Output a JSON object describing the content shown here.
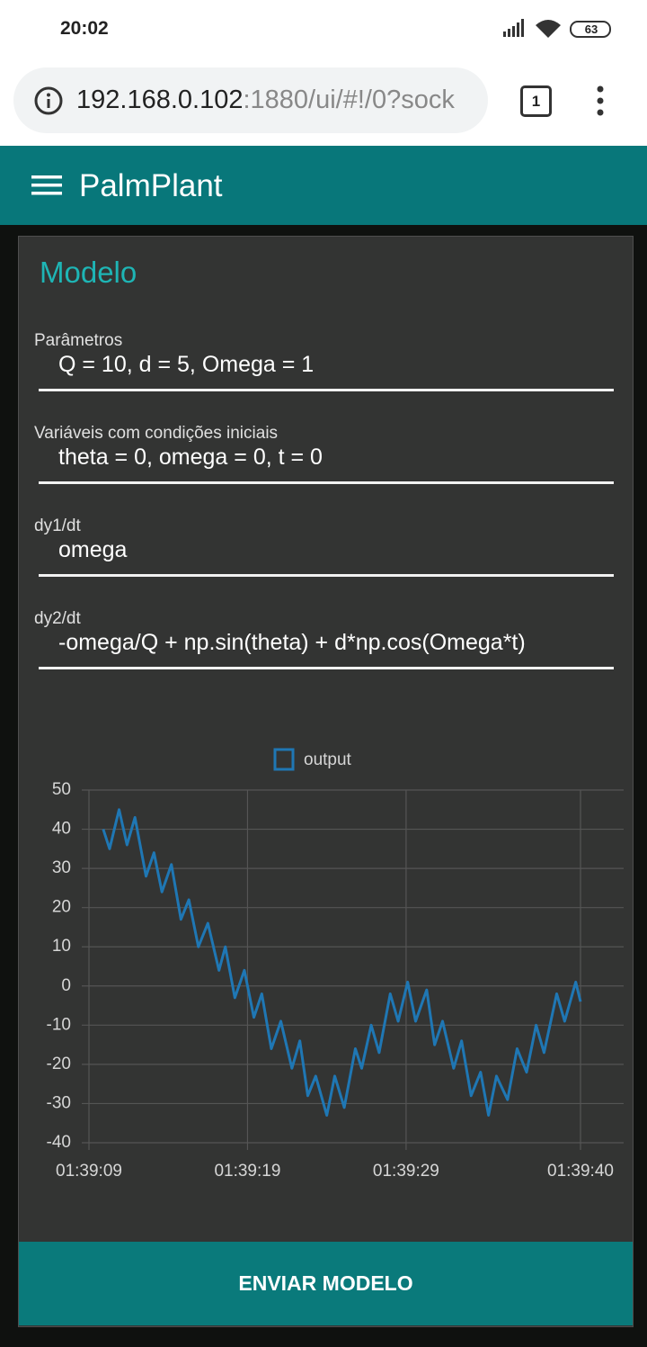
{
  "status_bar": {
    "time": "20:02",
    "battery": "63"
  },
  "browser": {
    "url_host": "192.168.0.102",
    "url_rest": ":1880/ui/#!/0?sock",
    "tab_count": "1"
  },
  "app": {
    "title": "PalmPlant"
  },
  "card": {
    "title": "Modelo",
    "fields": [
      {
        "label": "Parâmetros",
        "value": "Q = 10, d = 5, Omega = 1"
      },
      {
        "label": "Variáveis com condições iniciais",
        "value": "theta = 0, omega = 0, t = 0"
      },
      {
        "label": "dy1/dt",
        "value": "omega"
      },
      {
        "label": "dy2/dt",
        "value": "-omega/Q + np.sin(theta) + d*np.cos(Omega*t)"
      }
    ]
  },
  "chart_data": {
    "type": "line",
    "x": [
      9.9,
      10.3,
      10.9,
      11.4,
      11.9,
      12.6,
      13.1,
      13.6,
      14.2,
      14.8,
      15.3,
      15.9,
      16.5,
      17.2,
      17.6,
      18.2,
      18.8,
      19.4,
      19.9,
      20.5,
      21.1,
      21.8,
      22.3,
      22.8,
      23.3,
      24.0,
      24.5,
      25.1,
      25.8,
      26.2,
      26.8,
      27.3,
      28.0,
      28.5,
      29.1,
      29.6,
      30.3,
      30.8,
      31.3,
      32.0,
      32.5,
      33.1,
      33.7,
      34.2,
      34.7,
      35.4,
      36.0,
      36.6,
      37.2,
      37.7,
      38.5,
      39.0,
      39.7,
      40.0
    ],
    "series": [
      {
        "name": "output",
        "color": "#1f77b4",
        "values": [
          40,
          35,
          45,
          36,
          43,
          28,
          34,
          24,
          31,
          17,
          22,
          10,
          16,
          4,
          10,
          -3,
          4,
          -8,
          -2,
          -16,
          -9,
          -21,
          -14,
          -28,
          -23,
          -33,
          -23,
          -31,
          -16,
          -21,
          -10,
          -17,
          -2,
          -9,
          1,
          -9,
          -1,
          -15,
          -9,
          -21,
          -14,
          -28,
          -22,
          -33,
          -23,
          -29,
          -16,
          -22,
          -10,
          -17,
          -2,
          -9,
          1,
          -4
        ]
      }
    ],
    "xlim": [
      9,
      40
    ],
    "xticks": [
      {
        "value": 9,
        "label": "01:39:09"
      },
      {
        "value": 19,
        "label": "01:39:19"
      },
      {
        "value": 29,
        "label": "01:39:29"
      },
      {
        "value": 40,
        "label": "01:39:40"
      }
    ],
    "ylim": [
      -40,
      50
    ],
    "yticks": [
      -40,
      -30,
      -20,
      -10,
      0,
      10,
      20,
      30,
      40,
      50
    ],
    "grid": true,
    "legend": "top"
  },
  "button": {
    "label": "ENVIAR MODELO"
  }
}
